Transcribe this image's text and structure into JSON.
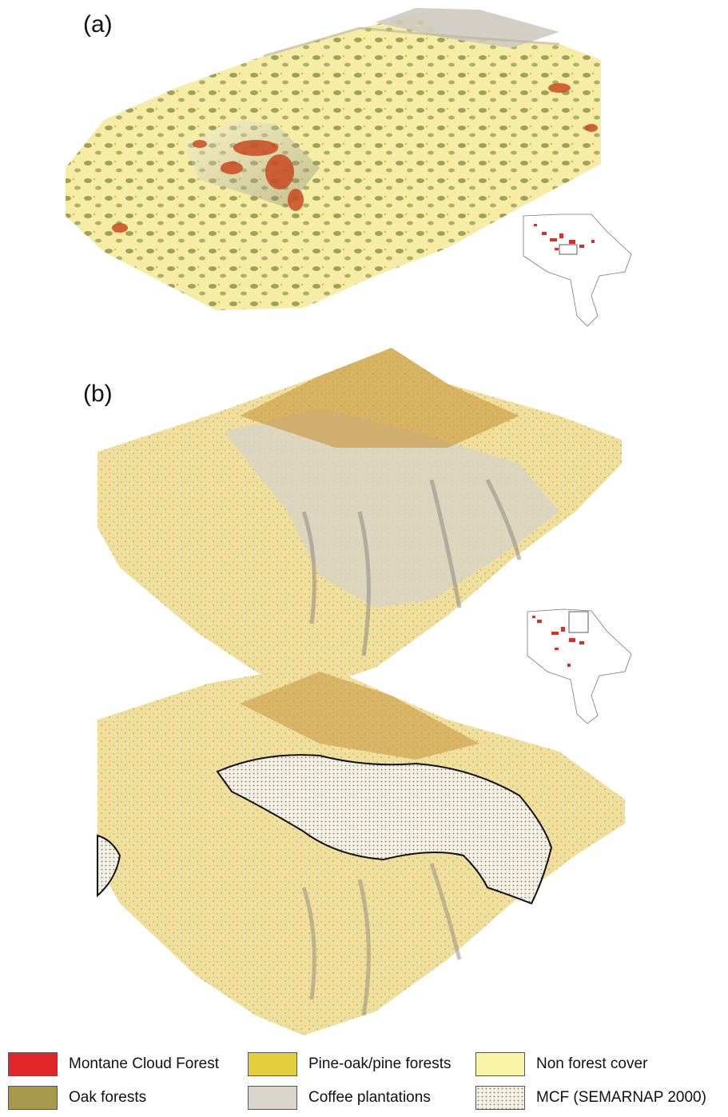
{
  "panels": [
    {
      "label": "(a)"
    },
    {
      "label": "(b)"
    }
  ],
  "legend": [
    {
      "label": "Montane Cloud Forest",
      "color": "#e0252b"
    },
    {
      "label": "Pine-oak/pine forests",
      "color": "#e3cf3d"
    },
    {
      "label": "Non forest cover",
      "color": "#fbf3a6"
    },
    {
      "label": "Oak forests",
      "color": "#a89a4c"
    },
    {
      "label": "Coffee plantations",
      "color": "#d9d5cc"
    },
    {
      "label": "MCF (SEMARNAP 2000)",
      "color": "dotted"
    }
  ],
  "colors": {
    "non_forest": "#f6eca5",
    "oak": "#7d8a3c",
    "pine_oak": "#d7be48",
    "cloud_forest": "#c94a20",
    "coffee": "#cfcac0",
    "shadow": "#9b978a"
  }
}
